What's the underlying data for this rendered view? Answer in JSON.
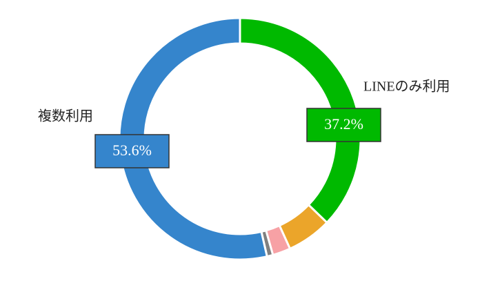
{
  "chart_data": {
    "type": "donut",
    "categories": [
      "LINEのみ利用",
      null,
      null,
      null,
      "複数利用"
    ],
    "values": [
      37.2,
      6,
      2.4,
      0.8,
      53.6
    ],
    "value_labels": [
      "37.2%",
      null,
      null,
      null,
      "53.6%"
    ],
    "colors": [
      "#00b900",
      "#eba52a",
      "#f7a1a5",
      "#808080",
      "#3585cc"
    ]
  }
}
